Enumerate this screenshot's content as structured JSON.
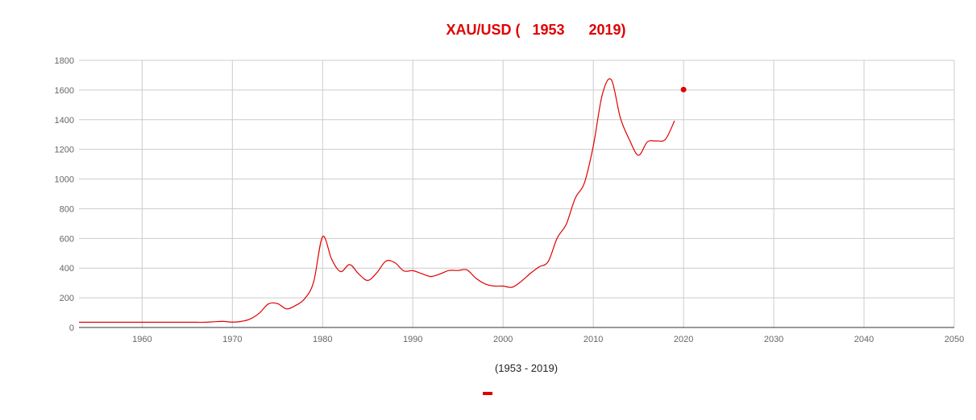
{
  "chart_data": {
    "type": "line",
    "title": "XAU/USD (   1953      2019)",
    "xlabel": "(1953 - 2019)",
    "ylabel": "",
    "xlim": [
      1953,
      2050
    ],
    "ylim": [
      0,
      1800
    ],
    "xticks": [
      1960,
      1970,
      1980,
      1990,
      2000,
      2010,
      2020,
      2030,
      2040,
      2050
    ],
    "yticks": [
      0,
      200,
      400,
      600,
      800,
      1000,
      1200,
      1400,
      1600,
      1800
    ],
    "grid": true,
    "legend": "bottom",
    "colors": {
      "series": "#e00000",
      "grid": "#cccccc",
      "axis": "#333333"
    },
    "series": [
      {
        "x": [
          1953,
          1955,
          1960,
          1965,
          1966,
          1967,
          1968,
          1969,
          1970,
          1971,
          1972,
          1973,
          1974,
          1975,
          1976,
          1977,
          1978,
          1979,
          1980,
          1981,
          1982,
          1983,
          1984,
          1985,
          1986,
          1987,
          1988,
          1989,
          1990,
          1991,
          1992,
          1993,
          1994,
          1995,
          1996,
          1997,
          1998,
          1999,
          2000,
          2001,
          2002,
          2003,
          2004,
          2005,
          2006,
          2007,
          2008,
          2009,
          2010,
          2011,
          2012,
          2013,
          2014,
          2015,
          2016,
          2017,
          2018,
          2019
        ],
        "values": [
          35,
          35,
          35,
          35,
          35,
          35,
          39,
          41,
          36,
          41,
          58,
          97,
          159,
          161,
          125,
          148,
          193,
          306,
          612,
          460,
          376,
          424,
          361,
          317,
          368,
          447,
          437,
          381,
          383,
          362,
          344,
          360,
          384,
          384,
          388,
          331,
          294,
          279,
          279,
          271,
          310,
          363,
          409,
          444,
          603,
          695,
          872,
          972,
          1224,
          1571,
          1669,
          1411,
          1266,
          1160,
          1251,
          1257,
          1268,
          1393
        ]
      }
    ],
    "point": {
      "x": 2020,
      "y": 1603
    }
  }
}
